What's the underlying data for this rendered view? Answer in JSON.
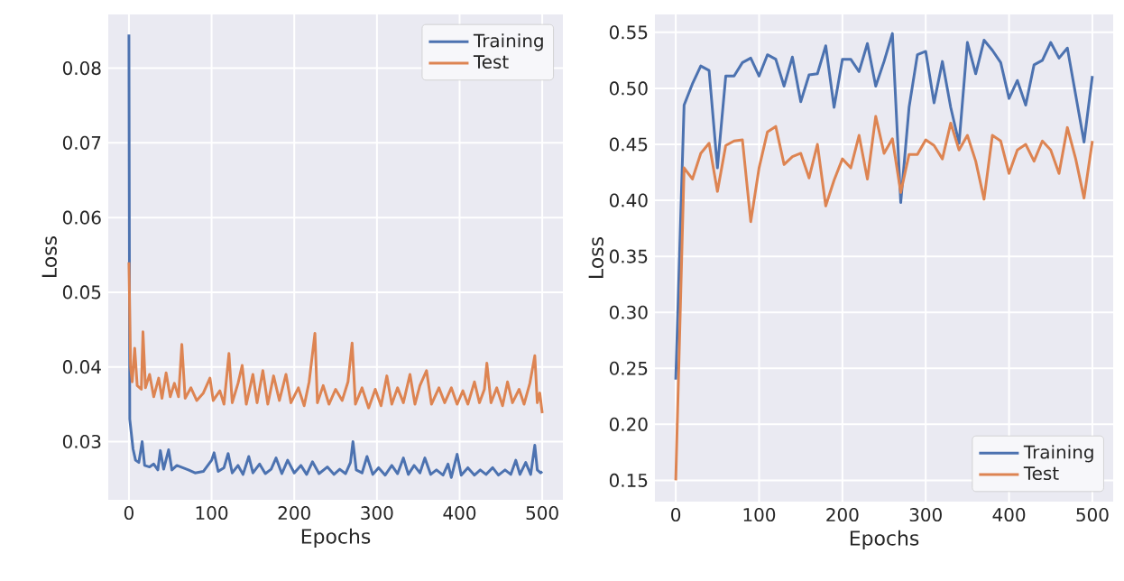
{
  "chart_data": [
    {
      "type": "line",
      "xlabel": "Epochs",
      "ylabel": "Loss",
      "xlim": [
        -25,
        525
      ],
      "ylim": [
        0.0222,
        0.0872
      ],
      "xticks": [
        0,
        100,
        200,
        300,
        400,
        500
      ],
      "yticks": [
        0.03,
        0.04,
        0.05,
        0.06,
        0.07,
        0.08
      ],
      "grid": true,
      "legend": "top right",
      "line_style": "solid",
      "marker": "none",
      "series": [
        {
          "name": "Training",
          "color": "#4c72b0",
          "x": [
            0,
            1,
            3,
            5,
            8,
            12,
            16,
            19,
            25,
            30,
            35,
            38,
            42,
            48,
            52,
            58,
            65,
            72,
            80,
            90,
            100,
            103,
            108,
            115,
            120,
            125,
            132,
            138,
            145,
            150,
            158,
            165,
            172,
            178,
            185,
            192,
            200,
            208,
            215,
            222,
            230,
            240,
            248,
            255,
            262,
            268,
            271,
            275,
            282,
            288,
            295,
            302,
            310,
            318,
            325,
            332,
            338,
            345,
            352,
            358,
            365,
            372,
            380,
            386,
            390,
            397,
            402,
            410,
            418,
            425,
            432,
            440,
            447,
            455,
            462,
            468,
            473,
            480,
            486,
            491,
            494,
            498,
            500
          ],
          "values": [
            0.0845,
            0.033,
            0.031,
            0.029,
            0.0275,
            0.0272,
            0.03,
            0.0268,
            0.0266,
            0.027,
            0.0262,
            0.0288,
            0.0263,
            0.0289,
            0.0262,
            0.0268,
            0.0265,
            0.0262,
            0.0258,
            0.026,
            0.0275,
            0.0285,
            0.026,
            0.0265,
            0.0284,
            0.0258,
            0.0268,
            0.0256,
            0.028,
            0.0258,
            0.027,
            0.0257,
            0.0263,
            0.0278,
            0.0257,
            0.0275,
            0.0258,
            0.0268,
            0.0256,
            0.0273,
            0.0257,
            0.0266,
            0.0256,
            0.0263,
            0.0257,
            0.0272,
            0.03,
            0.0262,
            0.0258,
            0.028,
            0.0256,
            0.0265,
            0.0255,
            0.0268,
            0.0257,
            0.0278,
            0.0256,
            0.0268,
            0.0258,
            0.0278,
            0.0256,
            0.0262,
            0.0255,
            0.027,
            0.0252,
            0.0283,
            0.0255,
            0.0265,
            0.0255,
            0.0262,
            0.0256,
            0.0265,
            0.0255,
            0.0262,
            0.0256,
            0.0275,
            0.0256,
            0.0272,
            0.0256,
            0.0295,
            0.0262,
            0.0258,
            0.026
          ]
        },
        {
          "name": "Test",
          "color": "#dd8452",
          "x": [
            0,
            2,
            4,
            7,
            10,
            15,
            17,
            20,
            25,
            30,
            36,
            40,
            45,
            50,
            55,
            60,
            64,
            68,
            75,
            82,
            90,
            98,
            102,
            110,
            115,
            121,
            125,
            132,
            137,
            142,
            150,
            155,
            162,
            168,
            175,
            182,
            190,
            196,
            205,
            212,
            218,
            225,
            228,
            235,
            242,
            250,
            258,
            265,
            270,
            274,
            282,
            290,
            298,
            305,
            312,
            318,
            325,
            332,
            340,
            346,
            352,
            360,
            366,
            375,
            382,
            390,
            397,
            404,
            410,
            418,
            424,
            430,
            433,
            438,
            445,
            452,
            458,
            464,
            472,
            478,
            485,
            491,
            494,
            497,
            500
          ],
          "values": [
            0.054,
            0.04,
            0.038,
            0.0425,
            0.0375,
            0.037,
            0.0447,
            0.0372,
            0.039,
            0.036,
            0.0385,
            0.0358,
            0.0392,
            0.036,
            0.0378,
            0.036,
            0.043,
            0.0358,
            0.0372,
            0.0355,
            0.0365,
            0.0385,
            0.0355,
            0.0368,
            0.035,
            0.0418,
            0.0352,
            0.0378,
            0.0402,
            0.035,
            0.039,
            0.0352,
            0.0395,
            0.035,
            0.0388,
            0.0355,
            0.039,
            0.0352,
            0.0372,
            0.0348,
            0.038,
            0.0445,
            0.0352,
            0.0375,
            0.035,
            0.037,
            0.0355,
            0.038,
            0.0432,
            0.035,
            0.0372,
            0.0345,
            0.037,
            0.0348,
            0.0388,
            0.035,
            0.0372,
            0.0352,
            0.039,
            0.035,
            0.0375,
            0.0395,
            0.035,
            0.0372,
            0.0352,
            0.0372,
            0.035,
            0.0368,
            0.035,
            0.038,
            0.0352,
            0.037,
            0.0405,
            0.0352,
            0.0372,
            0.0348,
            0.038,
            0.0352,
            0.037,
            0.035,
            0.0378,
            0.0415,
            0.0352,
            0.0365,
            0.0338
          ]
        }
      ]
    },
    {
      "type": "line",
      "xlabel": "Epochs",
      "ylabel": "Loss",
      "xlim": [
        -25,
        525
      ],
      "ylim": [
        0.131,
        0.566
      ],
      "xticks": [
        0,
        100,
        200,
        300,
        400,
        500
      ],
      "yticks": [
        0.15,
        {
          "value": 0.2,
          "label": "0.20"
        },
        0.25,
        {
          "value": 0.3,
          "label": "0.30"
        },
        0.35,
        {
          "value": 0.4,
          "label": "0.40"
        },
        0.45,
        {
          "value": 0.5,
          "label": "0.50"
        },
        0.55
      ],
      "grid": true,
      "legend": "bottom right",
      "line_style": "solid",
      "marker": "none",
      "series": [
        {
          "name": "Training",
          "color": "#4c72b0",
          "x": [
            0,
            10,
            20,
            30,
            40,
            50,
            60,
            70,
            80,
            90,
            100,
            110,
            120,
            130,
            140,
            150,
            160,
            170,
            180,
            190,
            200,
            210,
            220,
            230,
            240,
            250,
            260,
            270,
            280,
            290,
            300,
            310,
            320,
            330,
            340,
            350,
            360,
            370,
            380,
            390,
            400,
            410,
            420,
            430,
            440,
            450,
            460,
            470,
            480,
            490,
            500
          ],
          "values": [
            0.24,
            0.485,
            0.504,
            0.52,
            0.516,
            0.429,
            0.511,
            0.511,
            0.523,
            0.527,
            0.511,
            0.53,
            0.526,
            0.502,
            0.528,
            0.488,
            0.512,
            0.513,
            0.538,
            0.483,
            0.526,
            0.526,
            0.515,
            0.54,
            0.502,
            0.524,
            0.549,
            0.398,
            0.483,
            0.53,
            0.533,
            0.487,
            0.524,
            0.483,
            0.451,
            0.541,
            0.513,
            0.543,
            0.534,
            0.523,
            0.491,
            0.507,
            0.485,
            0.521,
            0.525,
            0.541,
            0.527,
            0.536,
            0.494,
            0.452,
            0.511
          ]
        },
        {
          "name": "Test",
          "color": "#dd8452",
          "x": [
            0,
            10,
            20,
            30,
            40,
            50,
            60,
            70,
            80,
            90,
            100,
            110,
            120,
            130,
            140,
            150,
            160,
            170,
            180,
            190,
            200,
            210,
            220,
            230,
            240,
            250,
            260,
            270,
            280,
            290,
            300,
            310,
            320,
            330,
            340,
            350,
            360,
            370,
            380,
            390,
            400,
            410,
            420,
            430,
            440,
            450,
            460,
            470,
            480,
            490,
            500
          ],
          "values": [
            0.15,
            0.429,
            0.419,
            0.442,
            0.451,
            0.408,
            0.449,
            0.453,
            0.454,
            0.381,
            0.429,
            0.461,
            0.466,
            0.432,
            0.439,
            0.442,
            0.42,
            0.45,
            0.395,
            0.418,
            0.437,
            0.429,
            0.458,
            0.419,
            0.475,
            0.442,
            0.455,
            0.407,
            0.441,
            0.441,
            0.454,
            0.449,
            0.437,
            0.469,
            0.445,
            0.458,
            0.435,
            0.401,
            0.458,
            0.453,
            0.424,
            0.445,
            0.45,
            0.435,
            0.453,
            0.445,
            0.424,
            0.465,
            0.437,
            0.402,
            0.453
          ]
        }
      ]
    }
  ]
}
